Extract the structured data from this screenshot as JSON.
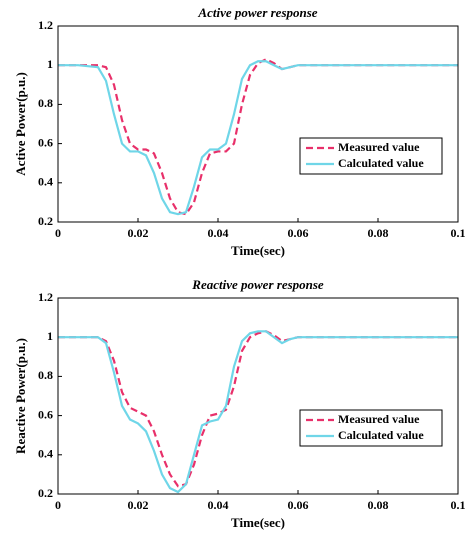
{
  "chart_data": [
    {
      "type": "line",
      "title": "Active power response",
      "x_label": "Time(sec)",
      "y_label": "Active Power(p.u.)",
      "x": [
        0,
        0.005,
        0.01,
        0.012,
        0.014,
        0.016,
        0.018,
        0.02,
        0.022,
        0.024,
        0.026,
        0.028,
        0.03,
        0.032,
        0.034,
        0.036,
        0.038,
        0.04,
        0.042,
        0.044,
        0.046,
        0.048,
        0.05,
        0.052,
        0.054,
        0.056,
        0.058,
        0.06,
        0.07,
        0.08,
        0.09,
        0.1
      ],
      "series": [
        {
          "name": "Measured value",
          "color": "#e8306a",
          "dashed": true,
          "values": [
            1,
            1,
            1,
            0.99,
            0.9,
            0.72,
            0.6,
            0.57,
            0.57,
            0.55,
            0.45,
            0.32,
            0.25,
            0.24,
            0.3,
            0.45,
            0.55,
            0.56,
            0.56,
            0.6,
            0.8,
            0.95,
            1.01,
            1.03,
            1.01,
            0.98,
            0.99,
            1,
            1,
            1,
            1,
            1
          ]
        },
        {
          "name": "Calculated value",
          "color": "#6fd6e8",
          "dashed": false,
          "values": [
            1,
            1,
            0.99,
            0.92,
            0.75,
            0.6,
            0.56,
            0.56,
            0.54,
            0.45,
            0.32,
            0.25,
            0.24,
            0.25,
            0.38,
            0.53,
            0.57,
            0.57,
            0.6,
            0.75,
            0.93,
            1.0,
            1.02,
            1.02,
            1.0,
            0.98,
            0.99,
            1,
            1,
            1,
            1,
            1
          ]
        }
      ],
      "xlim": [
        0,
        0.1
      ],
      "xticks": [
        0,
        0.02,
        0.04,
        0.06,
        0.08,
        0.1
      ],
      "ylim": [
        0.2,
        1.2
      ],
      "yticks": [
        0.2,
        0.4,
        0.6,
        0.8,
        1,
        1.2
      ],
      "grid": false,
      "legend": "center right"
    },
    {
      "type": "line",
      "title": "Reactive power response",
      "x_label": "Time(sec)",
      "y_label": "Reactive Power(p.u.)",
      "x": [
        0,
        0.005,
        0.01,
        0.012,
        0.014,
        0.016,
        0.018,
        0.02,
        0.022,
        0.024,
        0.026,
        0.028,
        0.03,
        0.032,
        0.034,
        0.036,
        0.038,
        0.04,
        0.042,
        0.044,
        0.046,
        0.048,
        0.05,
        0.052,
        0.054,
        0.056,
        0.058,
        0.06,
        0.07,
        0.08,
        0.09,
        0.1
      ],
      "series": [
        {
          "name": "Measured value",
          "color": "#e8306a",
          "dashed": true,
          "values": [
            1,
            1,
            1,
            0.98,
            0.88,
            0.72,
            0.64,
            0.62,
            0.6,
            0.52,
            0.4,
            0.3,
            0.24,
            0.25,
            0.35,
            0.5,
            0.6,
            0.61,
            0.63,
            0.75,
            0.93,
            1.0,
            1.02,
            1.03,
            1.01,
            0.98,
            0.99,
            1,
            1,
            1,
            1,
            1
          ]
        },
        {
          "name": "Calculated value",
          "color": "#6fd6e8",
          "dashed": false,
          "values": [
            1,
            1,
            1,
            0.97,
            0.82,
            0.65,
            0.58,
            0.56,
            0.52,
            0.42,
            0.3,
            0.23,
            0.21,
            0.25,
            0.4,
            0.55,
            0.57,
            0.58,
            0.65,
            0.85,
            0.98,
            1.02,
            1.03,
            1.03,
            1.0,
            0.97,
            0.99,
            1,
            1,
            1,
            1,
            1
          ]
        }
      ],
      "xlim": [
        0,
        0.1
      ],
      "xticks": [
        0,
        0.02,
        0.04,
        0.06,
        0.08,
        0.1
      ],
      "ylim": [
        0.2,
        1.2
      ],
      "yticks": [
        0.2,
        0.4,
        0.6,
        0.8,
        1,
        1.2
      ],
      "grid": false,
      "legend": "center right"
    }
  ]
}
